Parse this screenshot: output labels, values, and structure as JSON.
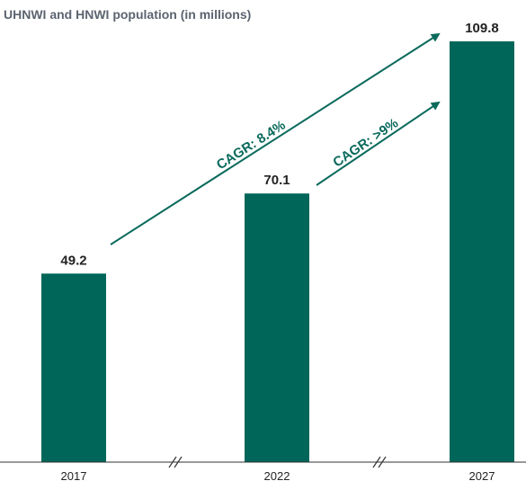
{
  "colors": {
    "bar": "#00665a",
    "arrow": "#0a6a5c",
    "title": "#5b6470",
    "axis": "#333333",
    "text": "#222222"
  },
  "chart_data": {
    "type": "bar",
    "title": "UHNWI and HNWI population (in millions)",
    "xlabel": "",
    "ylabel": "",
    "categories": [
      "2017",
      "2022",
      "2027"
    ],
    "values": [
      49.2,
      70.1,
      109.8
    ],
    "data_labels": [
      "49.2",
      "70.1",
      "109.8"
    ],
    "ylim": [
      0,
      115
    ],
    "grid": false,
    "axis_breaks": "between each category (//)",
    "annotations": [
      {
        "text": "CAGR: 8.4%",
        "from": "2017",
        "to": "2027",
        "style": "arrow"
      },
      {
        "text": "CAGR: >9%",
        "from": "2022",
        "to": "2027",
        "style": "arrow"
      }
    ]
  }
}
